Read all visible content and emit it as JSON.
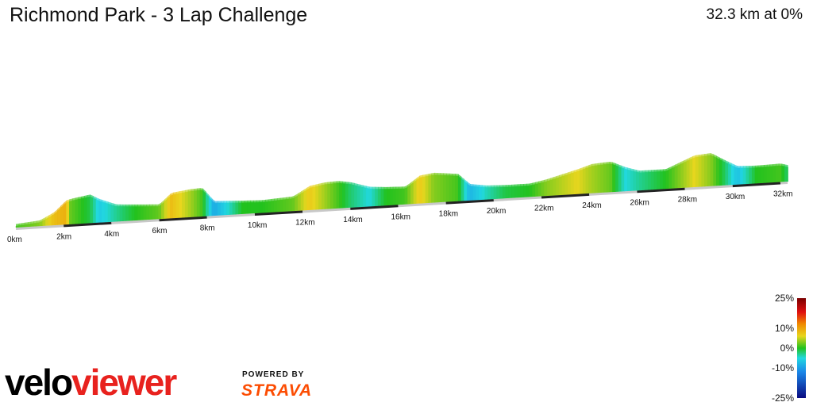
{
  "header": {
    "title": "Richmond Park - 3 Lap Challenge",
    "summary": "32.3 km at 0%"
  },
  "branding": {
    "logo_text": "veloviewer",
    "logo_color_velo": "#000000",
    "logo_color_viewer": "#e8221e",
    "powered_by": "POWERED BY",
    "strava": "STRAVA",
    "strava_color": "#fc4c02"
  },
  "chart_data": {
    "type": "area",
    "title": "Richmond Park - 3 Lap Challenge",
    "subtitle": "32.3 km at 0%",
    "x_unit": "km",
    "x_ticks": [
      0,
      2,
      4,
      6,
      8,
      10,
      12,
      14,
      16,
      18,
      20,
      22,
      24,
      26,
      28,
      30,
      32
    ],
    "x_tick_labels": [
      "0km",
      "2km",
      "4km",
      "6km",
      "8km",
      "10km",
      "12km",
      "14km",
      "16km",
      "18km",
      "20km",
      "22km",
      "24km",
      "26km",
      "28km",
      "30km",
      "32km"
    ],
    "xlim": [
      0,
      32.3
    ],
    "profile": {
      "distance_km": [
        0,
        1.0,
        1.6,
        2.1,
        2.3,
        3.1,
        3.5,
        4.2,
        5.0,
        6.0,
        6.5,
        7.3,
        7.8,
        8.3,
        9.5,
        10.3,
        11.6,
        12.3,
        12.9,
        13.5,
        14.0,
        14.8,
        15.5,
        16.3,
        16.9,
        17.5,
        18.5,
        19.0,
        19.7,
        20.5,
        21.5,
        22.2,
        23.5,
        24.1,
        24.9,
        25.5,
        26.1,
        27.2,
        28.4,
        29.1,
        29.6,
        30.2,
        31.0,
        32.0,
        32.3
      ],
      "relative_height": [
        0.05,
        0.12,
        0.35,
        0.7,
        0.74,
        0.84,
        0.68,
        0.48,
        0.44,
        0.4,
        0.74,
        0.82,
        0.84,
        0.4,
        0.36,
        0.34,
        0.4,
        0.7,
        0.78,
        0.8,
        0.74,
        0.56,
        0.52,
        0.5,
        0.82,
        0.88,
        0.8,
        0.46,
        0.38,
        0.36,
        0.36,
        0.46,
        0.72,
        0.86,
        0.9,
        0.7,
        0.56,
        0.56,
        0.94,
        0.98,
        0.76,
        0.52,
        0.5,
        0.52,
        0.46
      ],
      "gradient_pct": [
        1,
        3,
        8,
        9,
        2,
        -1,
        -6,
        -3,
        0,
        2,
        8,
        4,
        1,
        -9,
        0,
        0,
        2,
        7,
        4,
        1,
        -2,
        -5,
        0,
        1,
        7,
        3,
        1,
        -8,
        -4,
        -1,
        0,
        3,
        6,
        4,
        2,
        -5,
        -3,
        0,
        6,
        3,
        -1,
        -7,
        0,
        1,
        -2
      ]
    },
    "colorbar": {
      "ticks": [
        25,
        10,
        0,
        -10,
        -25
      ],
      "tick_labels": [
        "25%",
        "10%",
        "0%",
        "-10%",
        "-25%"
      ],
      "stops": [
        {
          "value": 25,
          "color": "#7a0000"
        },
        {
          "value": 18,
          "color": "#e01010"
        },
        {
          "value": 12,
          "color": "#f08a00"
        },
        {
          "value": 6,
          "color": "#e8d61e"
        },
        {
          "value": 0,
          "color": "#22c21e"
        },
        {
          "value": -5,
          "color": "#22d8e0"
        },
        {
          "value": -12,
          "color": "#1a86e8"
        },
        {
          "value": -25,
          "color": "#0a0a80"
        }
      ]
    }
  }
}
